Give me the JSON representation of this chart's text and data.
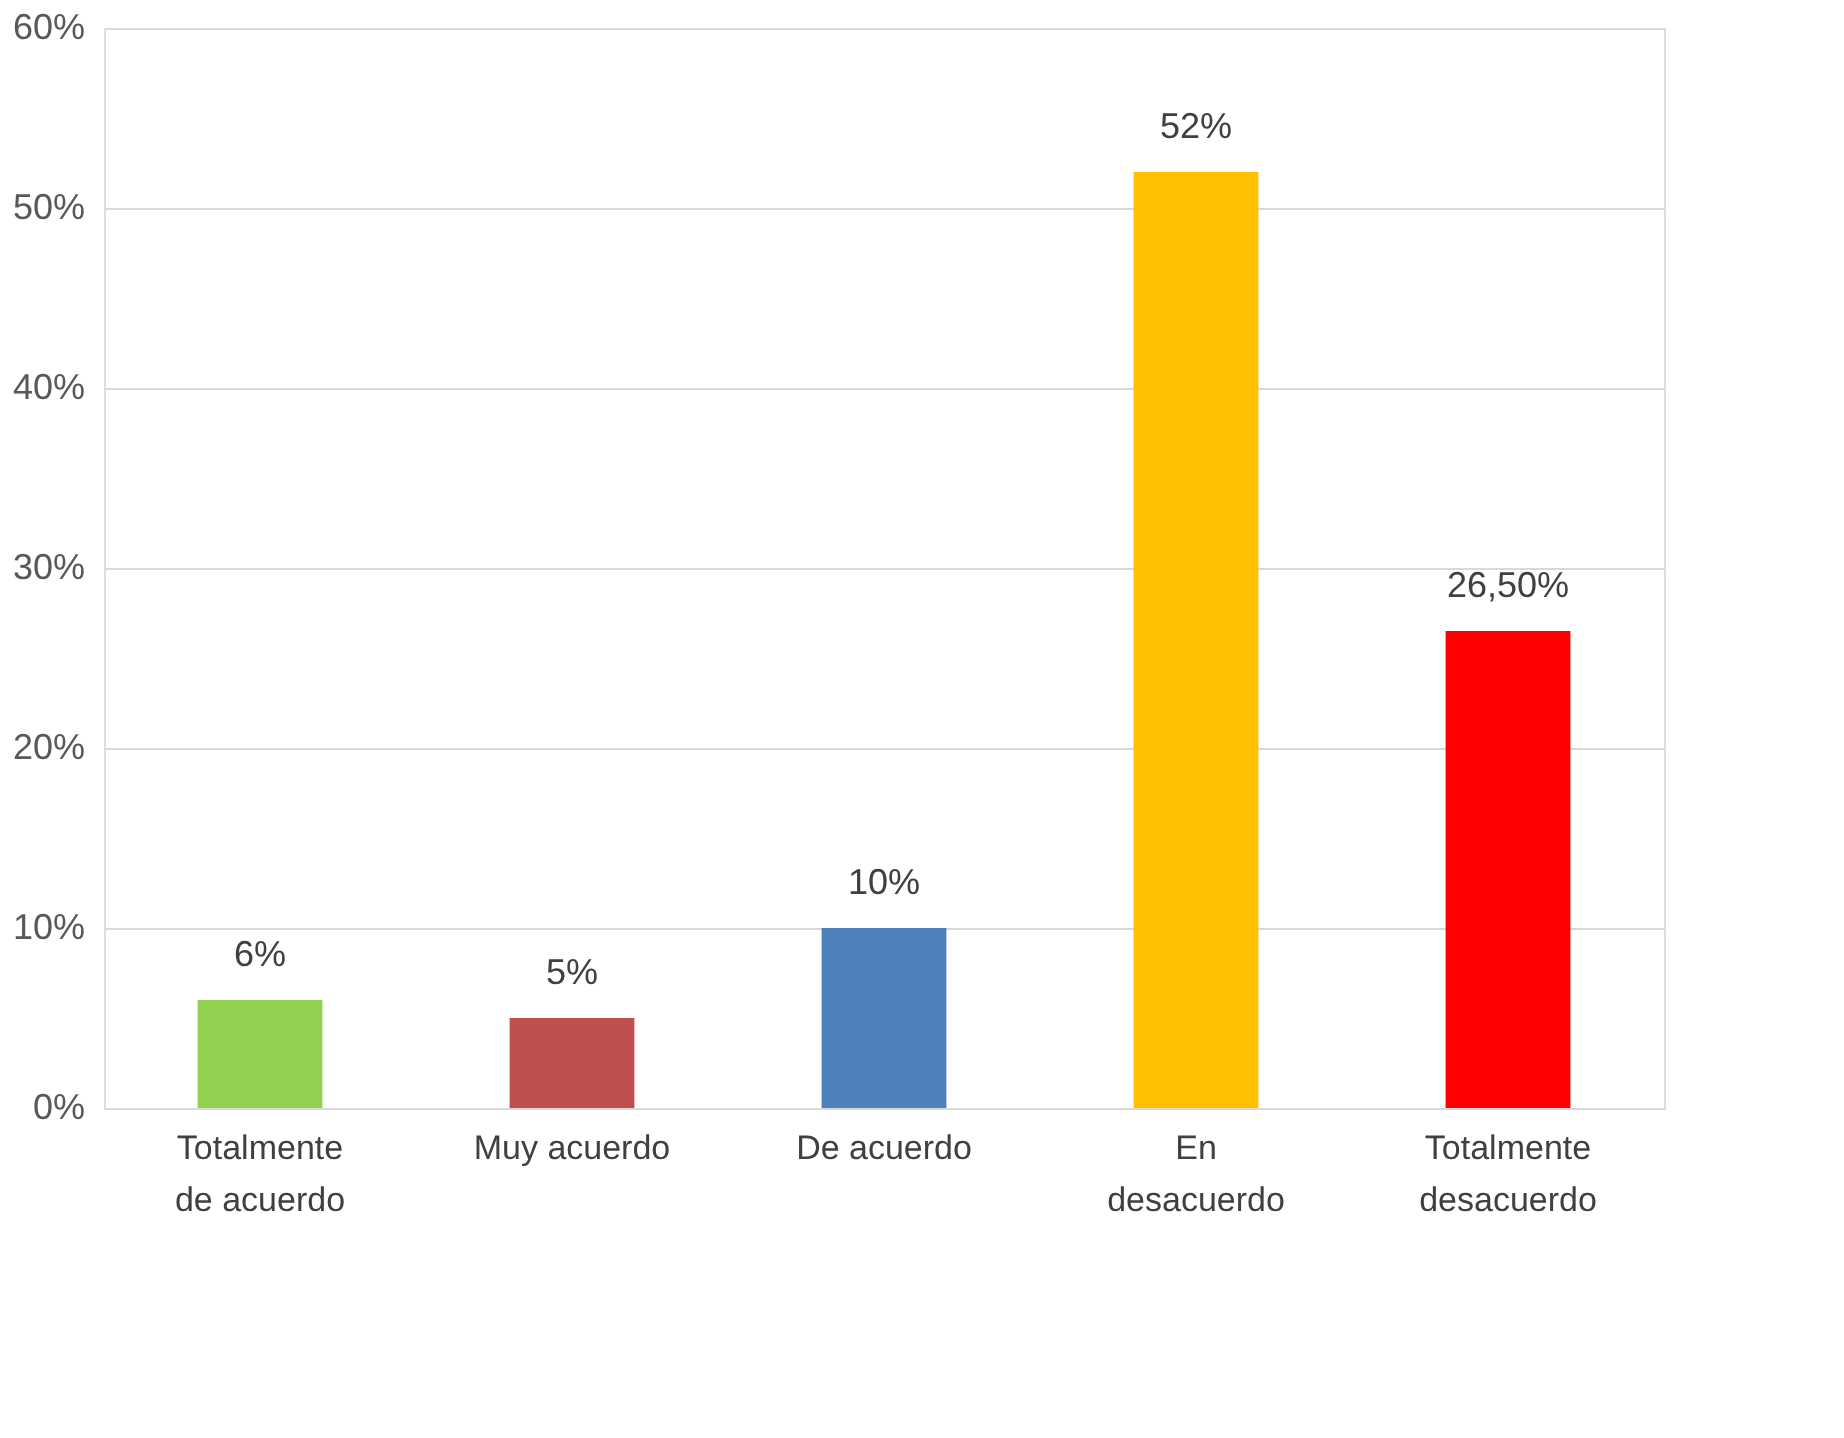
{
  "chart_data": {
    "type": "bar",
    "categories": [
      "Totalmente de acuerdo",
      "Muy acuerdo",
      "De acuerdo",
      "En desacuerdo",
      "Totalmente desacuerdo"
    ],
    "values": [
      6,
      5,
      10,
      52,
      26.5
    ],
    "colors": [
      "#92d050",
      "#c0504d",
      "#4f81bd",
      "#ffc000",
      "#ff0000"
    ],
    "value_labels": [
      "6%",
      "5%",
      "10%",
      "52%",
      "26,50%"
    ],
    "ylim": [
      0,
      60
    ],
    "yticks": [
      {
        "value": 0,
        "label": "0%"
      },
      {
        "value": 10,
        "label": "10%"
      },
      {
        "value": 20,
        "label": "20%"
      },
      {
        "value": 30,
        "label": "30%"
      },
      {
        "value": 40,
        "label": "40%"
      },
      {
        "value": 50,
        "label": "50%"
      },
      {
        "value": 60,
        "label": "60%"
      }
    ],
    "grid": "y"
  }
}
